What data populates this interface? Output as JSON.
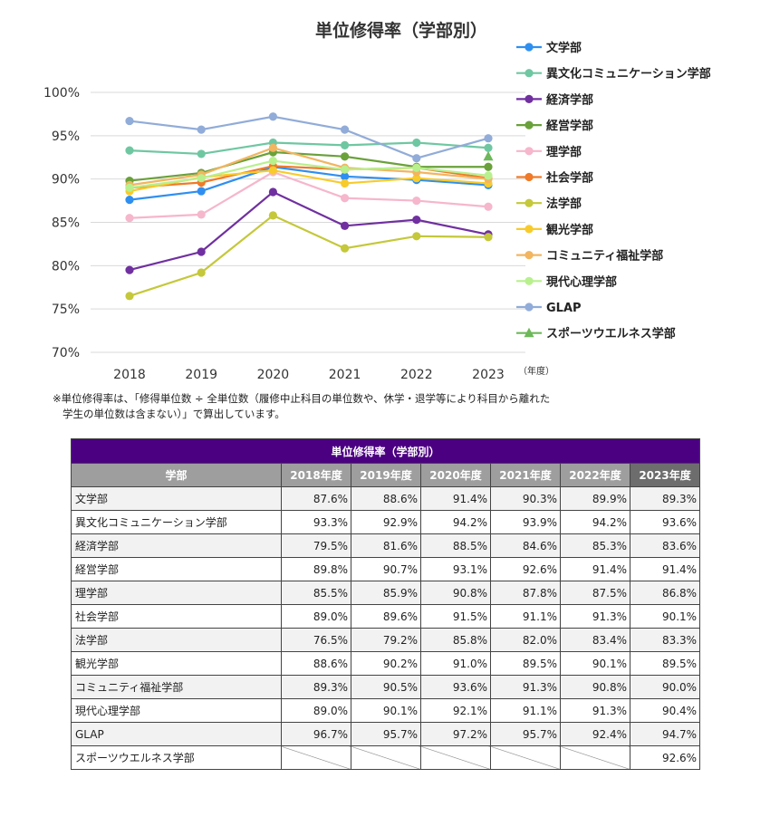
{
  "chart_data": {
    "type": "line",
    "title": "単位修得率（学部別）",
    "x": [
      "2018",
      "2019",
      "2020",
      "2021",
      "2022",
      "2023"
    ],
    "x_unit": "（年度）",
    "ylim": [
      70,
      100
    ],
    "yticks": [
      "70%",
      "75%",
      "80%",
      "85%",
      "90%",
      "95%",
      "100%"
    ],
    "grid": true,
    "legend_position": "right",
    "series": [
      {
        "name": "文学部",
        "color": "#2f8ff0",
        "marker": "circle",
        "values": [
          87.6,
          88.6,
          91.4,
          90.3,
          89.9,
          89.3
        ]
      },
      {
        "name": "異文化コミュニケーション学部",
        "color": "#6fc7a2",
        "marker": "circle",
        "values": [
          93.3,
          92.9,
          94.2,
          93.9,
          94.2,
          93.6
        ]
      },
      {
        "name": "経済学部",
        "color": "#7030a0",
        "marker": "circle",
        "values": [
          79.5,
          81.6,
          88.5,
          84.6,
          85.3,
          83.6
        ]
      },
      {
        "name": "経営学部",
        "color": "#6aa13a",
        "marker": "circle",
        "values": [
          89.8,
          90.7,
          93.1,
          92.6,
          91.4,
          91.4
        ]
      },
      {
        "name": "理学部",
        "color": "#f6b6cc",
        "marker": "circle",
        "values": [
          85.5,
          85.9,
          90.8,
          87.8,
          87.5,
          86.8
        ]
      },
      {
        "name": "社会学部",
        "color": "#f07a28",
        "marker": "circle",
        "values": [
          89.0,
          89.6,
          91.5,
          91.1,
          91.3,
          90.1
        ]
      },
      {
        "name": "法学部",
        "color": "#c4c83a",
        "marker": "circle",
        "values": [
          76.5,
          79.2,
          85.8,
          82.0,
          83.4,
          83.3
        ]
      },
      {
        "name": "観光学部",
        "color": "#f8cb2c",
        "marker": "circle",
        "values": [
          88.6,
          90.2,
          91.0,
          89.5,
          90.1,
          89.5
        ]
      },
      {
        "name": "コミュニティ福祉学部",
        "color": "#f2b560",
        "marker": "circle",
        "values": [
          89.3,
          90.5,
          93.6,
          91.3,
          90.8,
          90.0
        ]
      },
      {
        "name": "現代心理学部",
        "color": "#b8f08e",
        "marker": "circle",
        "values": [
          89.0,
          90.1,
          92.1,
          91.1,
          91.3,
          90.4
        ]
      },
      {
        "name": "GLAP",
        "color": "#91acd8",
        "marker": "circle",
        "values": [
          96.7,
          95.7,
          97.2,
          95.7,
          92.4,
          94.7
        ]
      },
      {
        "name": "スポーツウエルネス学部",
        "color": "#6db85a",
        "marker": "triangle",
        "values": [
          null,
          null,
          null,
          null,
          null,
          92.6
        ]
      }
    ]
  },
  "note": {
    "line1": "※単位修得率は、「修得単位数 ÷ 全単位数（履修中止科目の単位数や、休学・退学等により科目から離れた",
    "line2": "学生の単位数は含まない）」で算出しています。"
  },
  "table": {
    "caption": "単位修得率（学部別）",
    "headers": [
      "学部",
      "2018年度",
      "2019年度",
      "2020年度",
      "2021年度",
      "2022年度",
      "2023年度"
    ],
    "rows": [
      [
        "文学部",
        "87.6%",
        "88.6%",
        "91.4%",
        "90.3%",
        "89.9%",
        "89.3%"
      ],
      [
        "異文化コミュニケーション学部",
        "93.3%",
        "92.9%",
        "94.2%",
        "93.9%",
        "94.2%",
        "93.6%"
      ],
      [
        "経済学部",
        "79.5%",
        "81.6%",
        "88.5%",
        "84.6%",
        "85.3%",
        "83.6%"
      ],
      [
        "経営学部",
        "89.8%",
        "90.7%",
        "93.1%",
        "92.6%",
        "91.4%",
        "91.4%"
      ],
      [
        "理学部",
        "85.5%",
        "85.9%",
        "90.8%",
        "87.8%",
        "87.5%",
        "86.8%"
      ],
      [
        "社会学部",
        "89.0%",
        "89.6%",
        "91.5%",
        "91.1%",
        "91.3%",
        "90.1%"
      ],
      [
        "法学部",
        "76.5%",
        "79.2%",
        "85.8%",
        "82.0%",
        "83.4%",
        "83.3%"
      ],
      [
        "観光学部",
        "88.6%",
        "90.2%",
        "91.0%",
        "89.5%",
        "90.1%",
        "89.5%"
      ],
      [
        "コミュニティ福祉学部",
        "89.3%",
        "90.5%",
        "93.6%",
        "91.3%",
        "90.8%",
        "90.0%"
      ],
      [
        "現代心理学部",
        "89.0%",
        "90.1%",
        "92.1%",
        "91.1%",
        "91.3%",
        "90.4%"
      ],
      [
        "GLAP",
        "96.7%",
        "95.7%",
        "97.2%",
        "95.7%",
        "92.4%",
        "94.7%"
      ],
      [
        "スポーツウエルネス学部",
        null,
        null,
        null,
        null,
        null,
        "92.6%"
      ]
    ]
  }
}
